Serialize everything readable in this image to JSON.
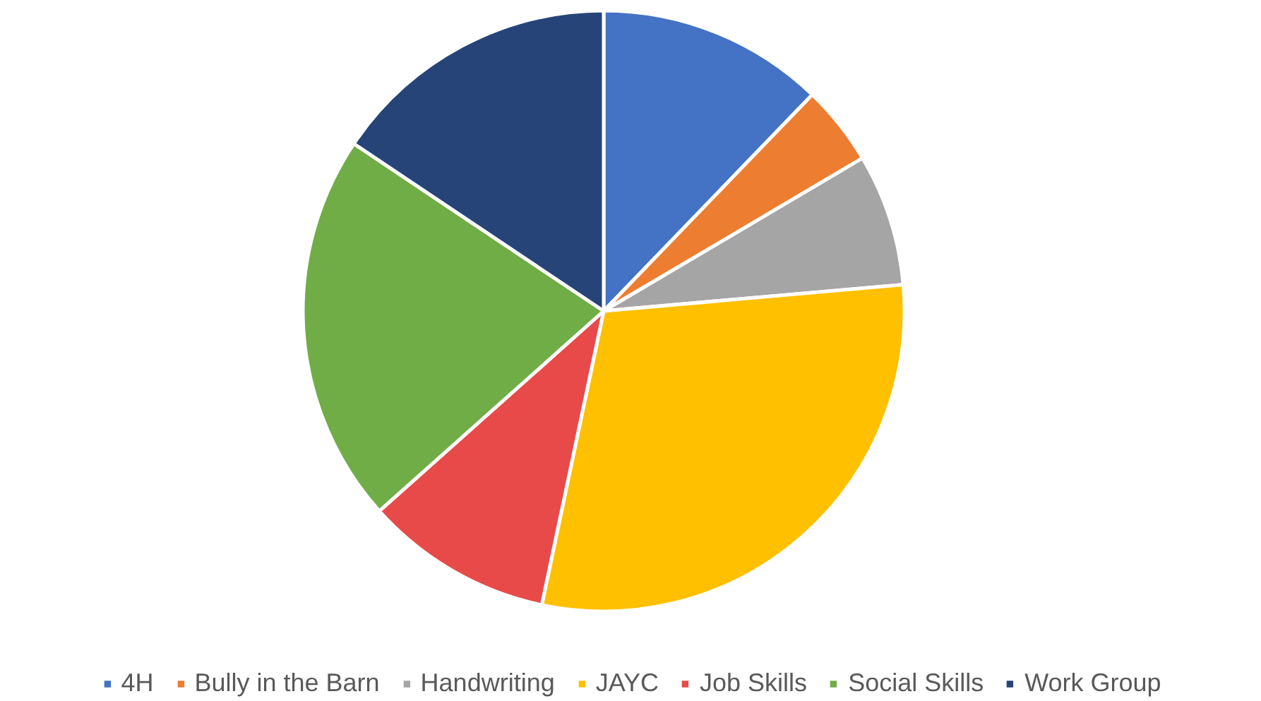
{
  "chart_data": {
    "type": "pie",
    "categories": [
      "4H",
      "Bully in the Barn",
      "Handwriting",
      "JAYC",
      "Job Skills",
      "Social Skills",
      "Work Group"
    ],
    "values": [
      12.2,
      4.3,
      7.1,
      29.7,
      10.1,
      21.0,
      15.6
    ],
    "colors": [
      "#4472c4",
      "#ed7d31",
      "#a5a5a5",
      "#ffc000",
      "#e84a4a",
      "#70ad47",
      "#264478"
    ],
    "legend": "bottom"
  }
}
